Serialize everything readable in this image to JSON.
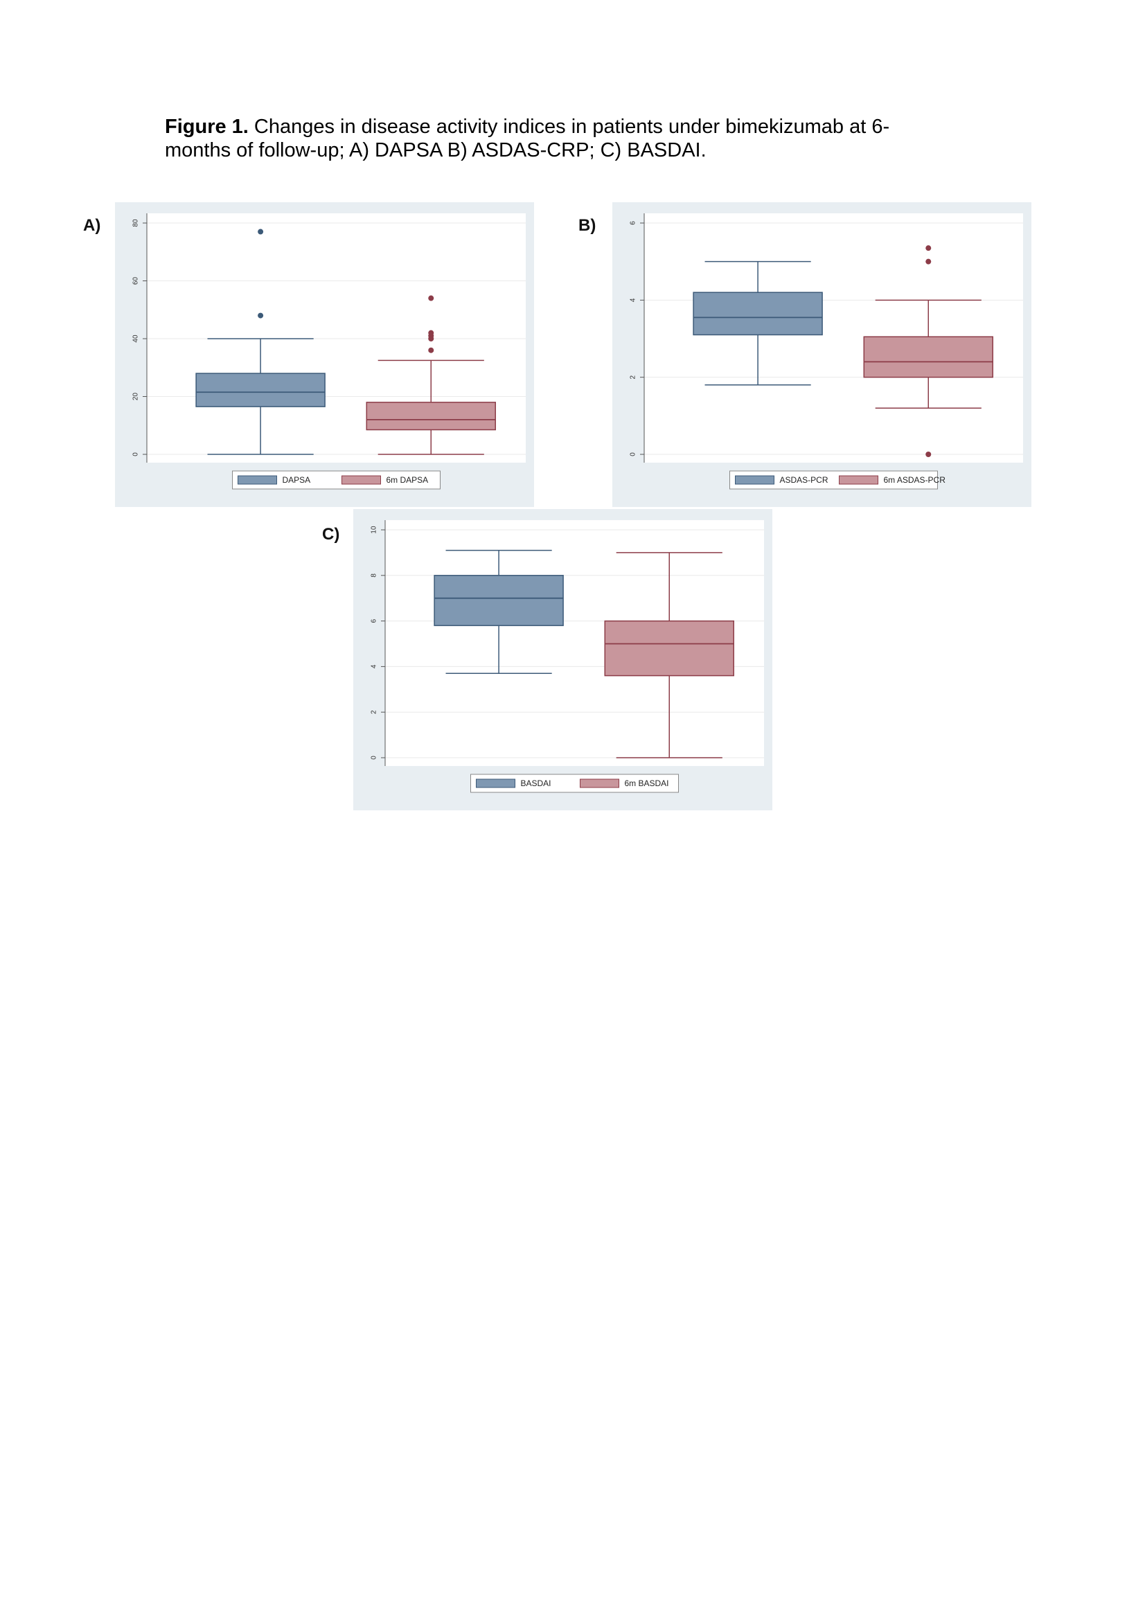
{
  "caption": {
    "bold": "Figure 1.",
    "text": " Changes in disease activity indices in patients under bimekizumab at 6-months of follow-up; A) DAPSA B) ASDAS-CRP; C) BASDAI."
  },
  "colors": {
    "baseline": "#7f98b2",
    "followup": "#c8969c",
    "baseline_line": "#3c5a78",
    "followup_line": "#8c3c48",
    "background": "#e8eef2"
  },
  "chart_data": [
    {
      "panel": "A)",
      "type": "box",
      "ylim": [
        0,
        80
      ],
      "yticks": [
        "0",
        "20",
        "40",
        "60",
        "80"
      ],
      "series": [
        {
          "name": "DAPSA",
          "min": 0,
          "q1": 16.5,
          "median": 21.5,
          "q3": 28,
          "max": 40,
          "outliers": [
            48,
            77
          ]
        },
        {
          "name": "6m DAPSA",
          "min": 0,
          "q1": 8.5,
          "median": 12,
          "q3": 18,
          "max": 32.5,
          "outliers": [
            36,
            40,
            41,
            42,
            54
          ]
        }
      ]
    },
    {
      "panel": "B)",
      "type": "box",
      "ylim": [
        0,
        6
      ],
      "yticks": [
        "0",
        "2",
        "4",
        "6"
      ],
      "series": [
        {
          "name": "ASDAS-PCR",
          "min": 1.8,
          "q1": 3.1,
          "median": 3.55,
          "q3": 4.2,
          "max": 5,
          "outliers": []
        },
        {
          "name": "6m ASDAS-PCR",
          "min": 1.2,
          "q1": 2,
          "median": 2.4,
          "q3": 3.05,
          "max": 4,
          "outliers": [
            0,
            5,
            5.35
          ]
        }
      ]
    },
    {
      "panel": "C)",
      "type": "box",
      "ylim": [
        0,
        10
      ],
      "yticks": [
        "0",
        "2",
        "4",
        "6",
        "8",
        "10"
      ],
      "series": [
        {
          "name": "BASDAI",
          "min": 3.7,
          "q1": 5.8,
          "median": 7,
          "q3": 8,
          "max": 9.1,
          "outliers": []
        },
        {
          "name": "6m BASDAI",
          "min": 0,
          "q1": 3.6,
          "median": 5,
          "q3": 6,
          "max": 9,
          "outliers": []
        }
      ]
    }
  ]
}
